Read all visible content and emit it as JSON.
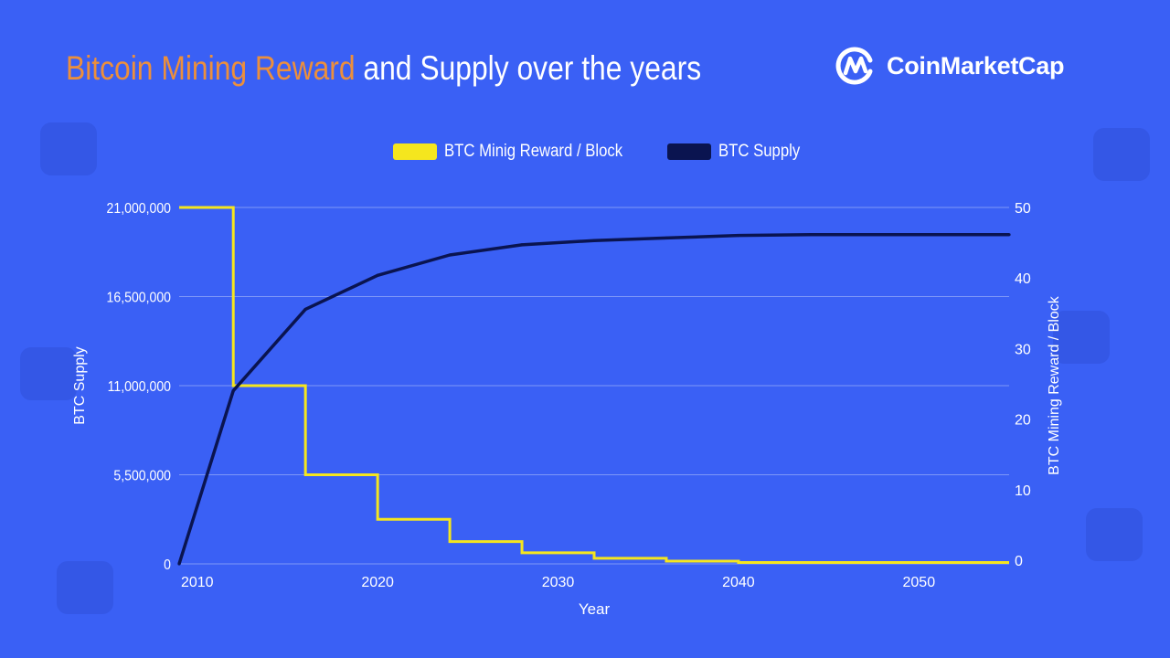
{
  "header": {
    "title_highlight": "Bitcoin Mining Reward",
    "title_rest": " and Supply over the years",
    "logo_text": "CoinMarketCap"
  },
  "colors": {
    "background": "#3a60f5",
    "highlight": "#ec8f3c",
    "reward": "#f5e61e",
    "supply": "#0a1450"
  },
  "chart_data": {
    "type": "line",
    "title": "Bitcoin Mining Reward and Supply over the years",
    "xlabel": "Year",
    "ylabel_left": "BTC Supply",
    "ylabel_right": "BTC Mining Reward / Block",
    "xlim": [
      2009,
      2055
    ],
    "x_ticks": [
      "2010",
      "2020",
      "2030",
      "2040",
      "2050"
    ],
    "x_tick_values": [
      2010,
      2020,
      2030,
      2040,
      2050
    ],
    "ylim_left": [
      0,
      21000000
    ],
    "y_ticks_left": [
      "0",
      "5,500,000",
      "11,000,000",
      "16,500,000",
      "21,000,000"
    ],
    "ylim_right": [
      0,
      50
    ],
    "y_ticks_right": [
      "0",
      "10",
      "20",
      "30",
      "40",
      "50"
    ],
    "grid": true,
    "legend": "top-center",
    "series": [
      {
        "name": "BTC Minig Reward / Block",
        "axis": "right",
        "style": "step",
        "x": [
          2009,
          2012,
          2016,
          2020,
          2024,
          2028,
          2032,
          2036,
          2040,
          2055
        ],
        "values": [
          50,
          25,
          12.5,
          6.25,
          3.125,
          1.5625,
          0.78,
          0.39,
          0.195,
          0.195
        ]
      },
      {
        "name": "BTC Supply",
        "axis": "left",
        "style": "line",
        "x": [
          2009,
          2012,
          2016,
          2020,
          2024,
          2028,
          2032,
          2036,
          2040,
          2044,
          2055
        ],
        "values": [
          0,
          10200000,
          15000000,
          17000000,
          18200000,
          18800000,
          19050000,
          19200000,
          19350000,
          19400000,
          19400000
        ]
      }
    ]
  }
}
